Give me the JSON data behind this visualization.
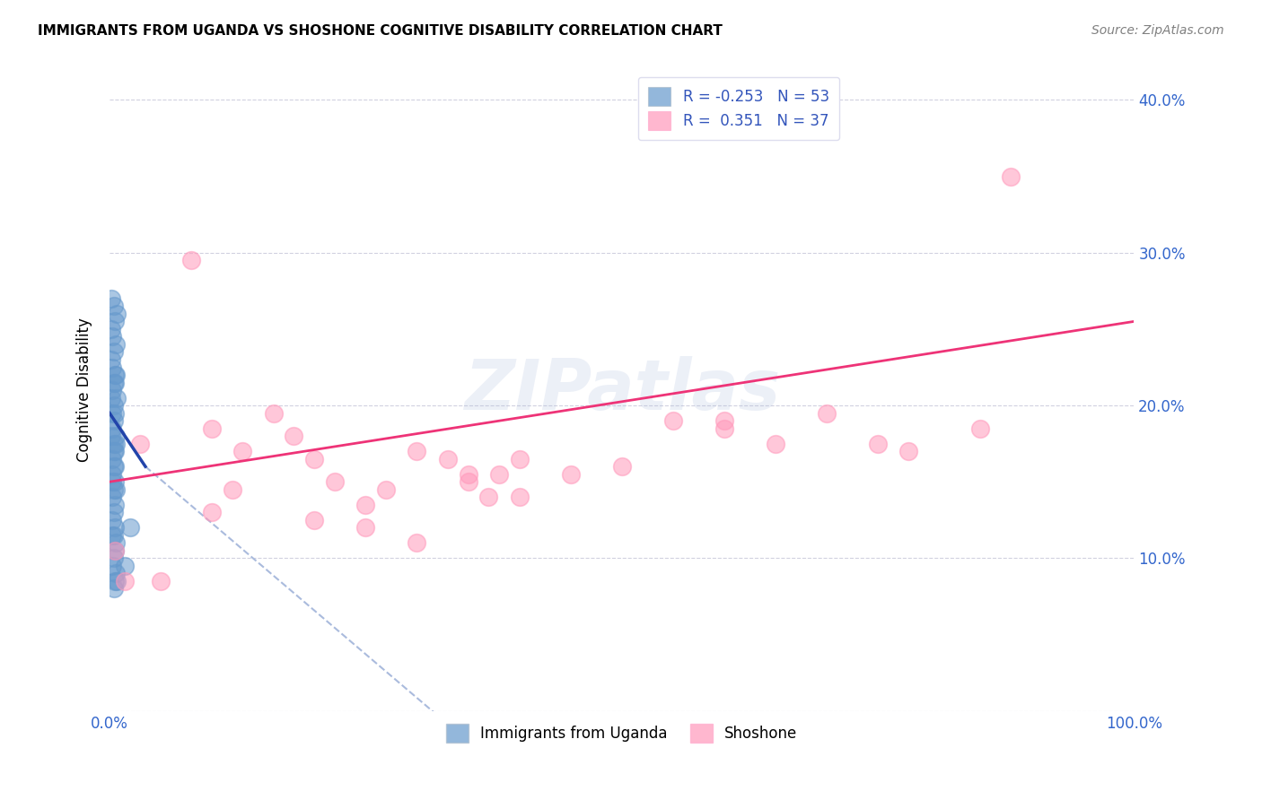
{
  "title": "IMMIGRANTS FROM UGANDA VS SHOSHONE COGNITIVE DISABILITY CORRELATION CHART",
  "source": "Source: ZipAtlas.com",
  "ylabel": "Cognitive Disability",
  "xlim": [
    0.0,
    100.0
  ],
  "ylim": [
    0.0,
    42.0
  ],
  "ytick_values": [
    0.0,
    10.0,
    20.0,
    30.0,
    40.0
  ],
  "xtick_values": [
    0.0,
    20.0,
    40.0,
    60.0,
    80.0,
    100.0
  ],
  "legend_r_blue": "-0.253",
  "legend_n_blue": "53",
  "legend_r_pink": "0.351",
  "legend_n_pink": "37",
  "blue_color": "#6699CC",
  "pink_color": "#FF99BB",
  "blue_trend_color": "#2244AA",
  "pink_trend_color": "#EE3377",
  "dashed_color": "#AABBDD",
  "watermark": "ZIPatlas",
  "blue_scatter_x": [
    0.2,
    0.4,
    0.7,
    0.2,
    0.5,
    0.3,
    0.6,
    0.4,
    0.2,
    0.3,
    0.5,
    0.4,
    0.3,
    0.6,
    0.2,
    0.4,
    0.5,
    0.3,
    0.7,
    0.4,
    0.5,
    0.3,
    0.6,
    0.4,
    0.2,
    0.5,
    0.3,
    0.4,
    0.6,
    0.3,
    0.5,
    0.4,
    0.3,
    0.6,
    0.5,
    0.4,
    0.3,
    2.0,
    0.5,
    0.4,
    0.6,
    0.3,
    0.5,
    0.4,
    0.3,
    0.6,
    0.5,
    0.4,
    0.7,
    0.3,
    0.5,
    1.5,
    0.4
  ],
  "blue_scatter_y": [
    27.0,
    26.5,
    26.0,
    25.0,
    25.5,
    24.5,
    24.0,
    23.5,
    23.0,
    22.5,
    22.0,
    21.5,
    21.0,
    22.0,
    20.5,
    20.0,
    21.5,
    19.5,
    20.5,
    19.0,
    19.5,
    18.5,
    18.0,
    17.5,
    18.0,
    17.0,
    16.5,
    16.0,
    17.5,
    15.5,
    15.0,
    14.5,
    14.0,
    14.5,
    13.5,
    13.0,
    12.5,
    12.0,
    12.0,
    11.5,
    11.0,
    11.5,
    10.5,
    10.0,
    9.5,
    9.0,
    8.5,
    8.0,
    8.5,
    15.0,
    16.0,
    9.5,
    17.0
  ],
  "pink_scatter_x": [
    0.5,
    1.5,
    3.0,
    5.0,
    8.0,
    10.0,
    13.0,
    16.0,
    18.0,
    20.0,
    22.0,
    25.0,
    27.0,
    30.0,
    33.0,
    35.0,
    37.0,
    40.0,
    45.0,
    50.0,
    55.0,
    60.0,
    65.0,
    70.0,
    78.0,
    85.0,
    88.0,
    10.0,
    20.0,
    25.0,
    30.0,
    35.0,
    40.0,
    12.0,
    38.0,
    60.0,
    75.0
  ],
  "pink_scatter_y": [
    10.5,
    8.5,
    17.5,
    8.5,
    29.5,
    18.5,
    17.0,
    19.5,
    18.0,
    16.5,
    15.0,
    13.5,
    14.5,
    17.0,
    16.5,
    15.5,
    14.0,
    16.5,
    15.5,
    16.0,
    19.0,
    18.5,
    17.5,
    19.5,
    17.0,
    18.5,
    35.0,
    13.0,
    12.5,
    12.0,
    11.0,
    15.0,
    14.0,
    14.5,
    15.5,
    19.0,
    17.5
  ]
}
